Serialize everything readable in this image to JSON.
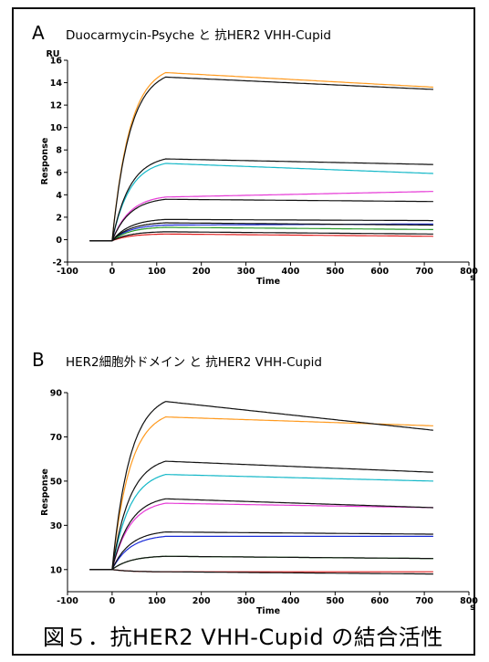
{
  "caption": "図５．抗HER2 VHH-Cupid の結合活性",
  "chart_data": [
    {
      "type": "line",
      "panel": "A",
      "title": "Duocarmycin-Psyche と 抗HER2 VHH-Cupid",
      "xlabel": "Time",
      "x_unit": "s",
      "ylabel": "Response",
      "y_unit": "RU",
      "xlim": [
        -100,
        800
      ],
      "ylim": [
        -2,
        16
      ],
      "xticks": [
        -100,
        0,
        100,
        200,
        300,
        400,
        500,
        600,
        700,
        800
      ],
      "yticks": [
        -2,
        0,
        2,
        4,
        6,
        8,
        10,
        12,
        14,
        16
      ],
      "grid": false,
      "series": [
        {
          "color": "#ff9a1f",
          "x": [
            -50,
            0,
            120,
            720
          ],
          "values": [
            -0.1,
            0,
            14.9,
            13.6
          ]
        },
        {
          "color": "#111111",
          "x": [
            -50,
            0,
            120,
            720
          ],
          "values": [
            -0.1,
            0,
            14.5,
            13.4
          ]
        },
        {
          "color": "#15b8c8",
          "x": [
            -50,
            0,
            120,
            720
          ],
          "values": [
            -0.1,
            0,
            6.8,
            5.9
          ]
        },
        {
          "color": "#111111",
          "x": [
            -50,
            0,
            120,
            720
          ],
          "values": [
            -0.1,
            0,
            7.2,
            6.7
          ]
        },
        {
          "color": "#e63ad6",
          "x": [
            -50,
            0,
            120,
            720
          ],
          "values": [
            -0.1,
            0,
            3.8,
            4.3
          ]
        },
        {
          "color": "#111111",
          "x": [
            -50,
            0,
            120,
            720
          ],
          "values": [
            -0.1,
            0,
            3.6,
            3.4
          ]
        },
        {
          "color": "#1a2bd8",
          "x": [
            -50,
            0,
            120,
            720
          ],
          "values": [
            -0.1,
            0,
            1.3,
            1.4
          ]
        },
        {
          "color": "#111111",
          "x": [
            -50,
            0,
            120,
            720
          ],
          "values": [
            -0.1,
            0,
            1.8,
            1.7
          ]
        },
        {
          "color": "#2a9a2a",
          "x": [
            -50,
            0,
            120,
            720
          ],
          "values": [
            -0.1,
            0,
            1.1,
            0.9
          ]
        },
        {
          "color": "#111111",
          "x": [
            -50,
            0,
            120,
            720
          ],
          "values": [
            -0.1,
            0,
            1.5,
            1.3
          ]
        },
        {
          "color": "#e02020",
          "x": [
            -50,
            0,
            120,
            720
          ],
          "values": [
            -0.1,
            0,
            0.5,
            0.3
          ]
        },
        {
          "color": "#111111",
          "x": [
            -50,
            0,
            120,
            720
          ],
          "values": [
            -0.1,
            0,
            0.7,
            0.5
          ]
        }
      ]
    },
    {
      "type": "line",
      "panel": "B",
      "title": "HER2細胞外ドメイン と 抗HER2 VHH-Cupid",
      "xlabel": "Time",
      "x_unit": "s",
      "ylabel": "Response",
      "y_unit": "",
      "xlim": [
        -100,
        800
      ],
      "ylim": [
        0,
        90
      ],
      "xticks": [
        -100,
        0,
        100,
        200,
        300,
        400,
        500,
        600,
        700,
        800
      ],
      "yticks": [
        10,
        30,
        50,
        70,
        90
      ],
      "grid": false,
      "series": [
        {
          "color": "#ff9a1f",
          "x": [
            -50,
            0,
            120,
            720
          ],
          "values": [
            10,
            10,
            79,
            75
          ]
        },
        {
          "color": "#111111",
          "x": [
            -50,
            0,
            120,
            720
          ],
          "values": [
            10,
            10,
            86,
            73
          ]
        },
        {
          "color": "#15b8c8",
          "x": [
            -50,
            0,
            120,
            720
          ],
          "values": [
            10,
            10,
            53,
            50
          ]
        },
        {
          "color": "#111111",
          "x": [
            -50,
            0,
            120,
            720
          ],
          "values": [
            10,
            10,
            59,
            54
          ]
        },
        {
          "color": "#e63ad6",
          "x": [
            -50,
            0,
            120,
            720
          ],
          "values": [
            10,
            10,
            40,
            38
          ]
        },
        {
          "color": "#111111",
          "x": [
            -50,
            0,
            120,
            720
          ],
          "values": [
            10,
            10,
            42,
            38
          ]
        },
        {
          "color": "#1a2bd8",
          "x": [
            -50,
            0,
            120,
            720
          ],
          "values": [
            10,
            10,
            25,
            25
          ]
        },
        {
          "color": "#111111",
          "x": [
            -50,
            0,
            120,
            720
          ],
          "values": [
            10,
            10,
            27,
            26
          ]
        },
        {
          "color": "#2a9a2a",
          "x": [
            -50,
            0,
            120,
            720
          ],
          "values": [
            10,
            10,
            16,
            15
          ]
        },
        {
          "color": "#111111",
          "x": [
            -50,
            0,
            120,
            720
          ],
          "values": [
            10,
            10,
            16,
            15
          ]
        },
        {
          "color": "#e02020",
          "x": [
            -50,
            0,
            120,
            720
          ],
          "values": [
            10,
            10,
            9,
            9
          ]
        },
        {
          "color": "#111111",
          "x": [
            -50,
            0,
            120,
            720
          ],
          "values": [
            10,
            10,
            9,
            8
          ]
        }
      ]
    }
  ]
}
